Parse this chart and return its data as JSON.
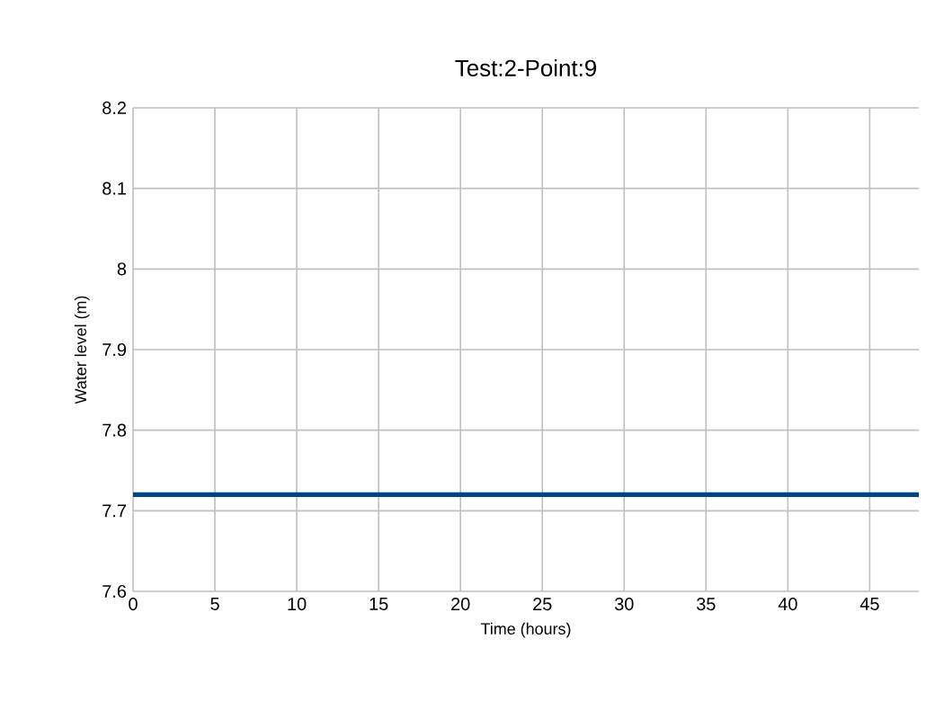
{
  "chart_data": {
    "type": "line",
    "title": "Test:2-Point:9",
    "xlabel": "Time (hours)",
    "ylabel": "Water level (m)",
    "series": [
      {
        "color": "#004586",
        "x": [
          0,
          48
        ],
        "values": [
          7.72,
          7.72
        ]
      }
    ],
    "xlim": [
      0,
      48
    ],
    "xticks": [
      0,
      5,
      10,
      15,
      20,
      25,
      30,
      35,
      40,
      45
    ],
    "ylim": [
      7.6,
      8.2
    ],
    "yticks": [
      7.6,
      7.7,
      7.8,
      7.9,
      8,
      8.1,
      8.2
    ],
    "grid": true,
    "marker": "none",
    "line_style": "solid"
  }
}
